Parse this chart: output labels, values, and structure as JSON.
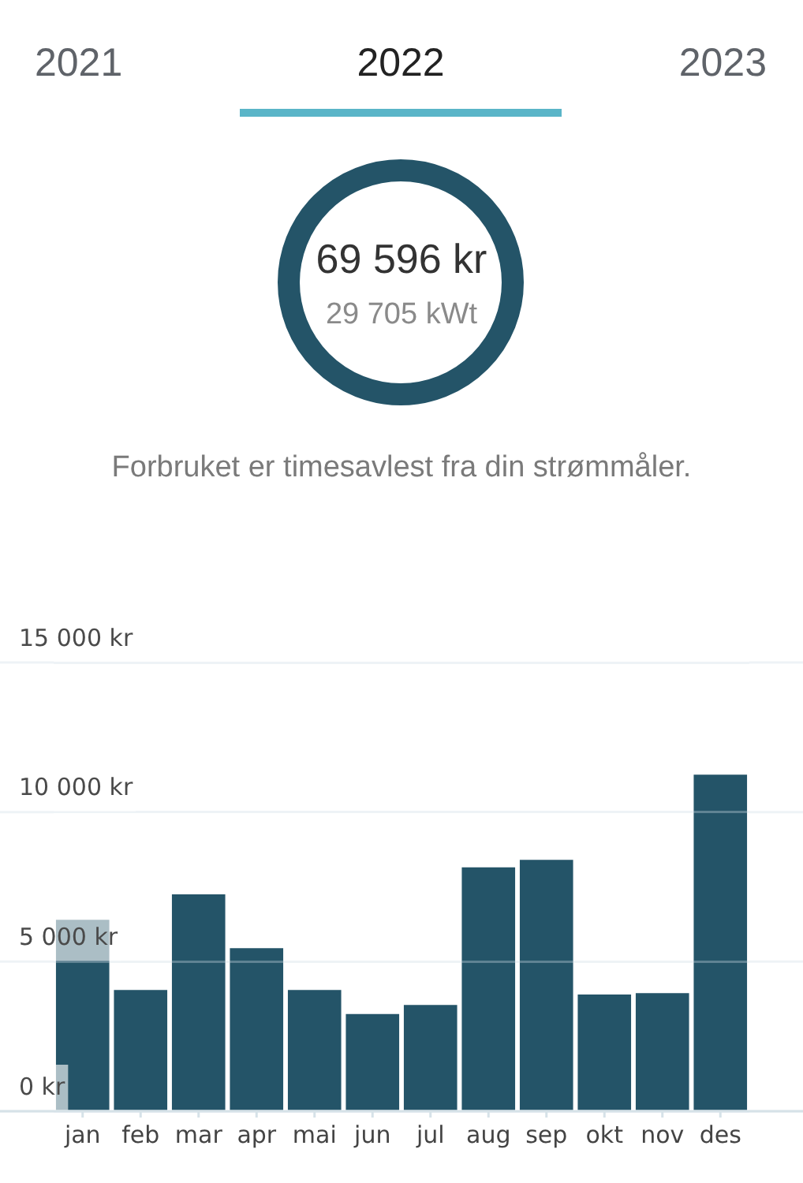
{
  "chart_data": [
    {
      "type": "other",
      "title": "69 596 kr",
      "subtitle": "29 705 kWt",
      "annotations": [
        "2021",
        "2022",
        "2023"
      ],
      "color": "#245468"
    },
    {
      "type": "bar",
      "annotations": [
        "Forbruket er timesavlest fra din strømmåler."
      ],
      "categories": [
        "jan",
        "feb",
        "mar",
        "apr",
        "mai",
        "jun",
        "jul",
        "aug",
        "sep",
        "okt",
        "nov",
        "des"
      ],
      "values": [
        6400,
        4050,
        7250,
        5450,
        4050,
        3250,
        3550,
        8150,
        8400,
        3900,
        3950,
        11250
      ],
      "color": "#245468",
      "ylim": [
        0,
        15000
      ],
      "yticks": [
        {
          "value": 0,
          "label": "0 kr"
        },
        {
          "value": 5000,
          "label": "5 000 kr"
        },
        {
          "value": 10000,
          "label": "10 000 kr"
        },
        {
          "value": 15000,
          "label": "15 000 kr"
        }
      ],
      "grid": "y"
    }
  ]
}
